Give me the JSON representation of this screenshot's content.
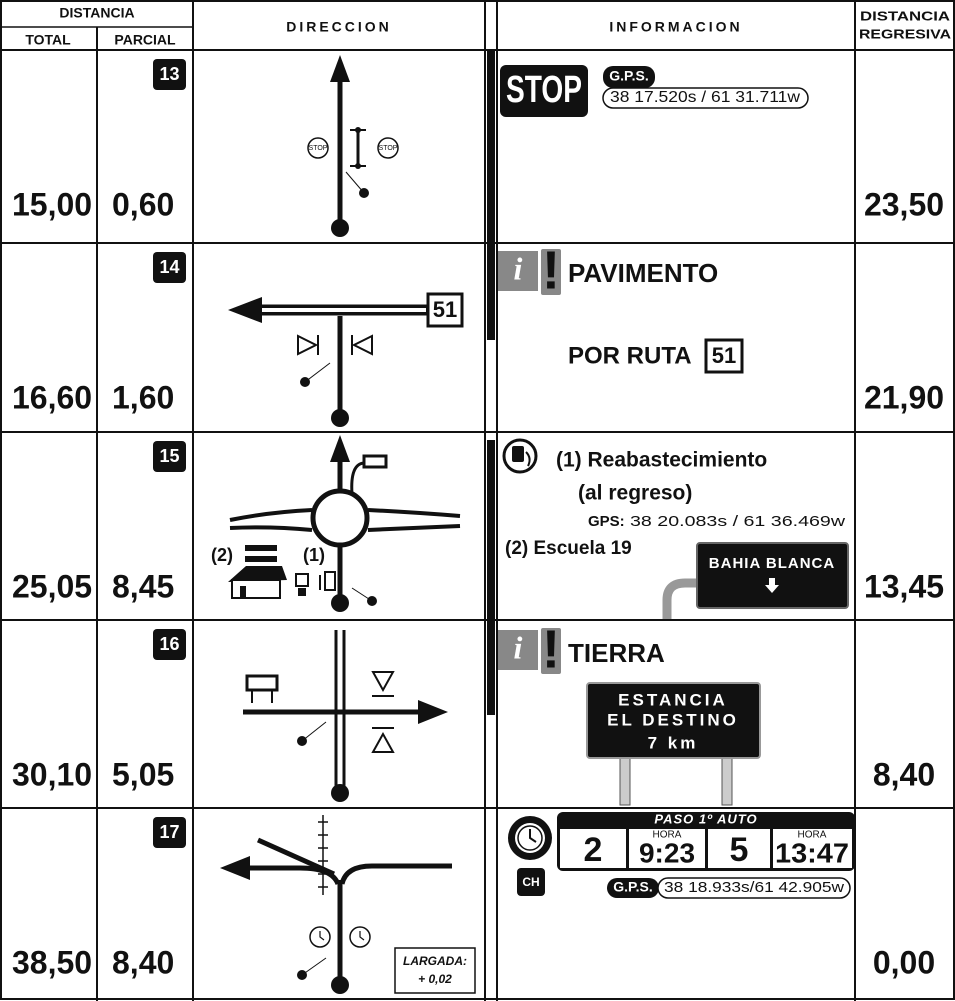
{
  "header": {
    "distancia": "DISTANCIA",
    "total": "TOTAL",
    "parcial": "PARCIAL",
    "direccion": "DIRECCION",
    "informacion": "INFORMACION",
    "distancia_regresiva": [
      "DISTANCIA",
      "REGRESIVA"
    ]
  },
  "rows": [
    {
      "number": "13",
      "total": "15,00",
      "parcial": "0,60",
      "regresiva": "23,50",
      "signs": [
        "STOP",
        "STOP"
      ],
      "stop": "STOP",
      "gps_label": "G.P.S.",
      "gps": "38 17.520s / 61 31.711w"
    },
    {
      "number": "14",
      "total": "16,60",
      "parcial": "1,60",
      "regresiva": "21,90",
      "route": "51",
      "info_icon": "i",
      "exclamation": "!",
      "title": "PAVIMENTO",
      "subtitle": "POR RUTA",
      "subtitle_route": "51"
    },
    {
      "number": "15",
      "total": "25,05",
      "parcial": "8,45",
      "regresiva": "13,45",
      "labels": [
        "(2)",
        "(1)"
      ],
      "items": [
        "(1) Reabastecimiento",
        "(al regreso)"
      ],
      "gps_label": "GPS:",
      "gps": "38 20.083s / 61 36.469w",
      "item2": "(2) Escuela 19",
      "sign": "BAHIA BLANCA"
    },
    {
      "number": "16",
      "total": "30,10",
      "parcial": "5,05",
      "regresiva": "8,40",
      "info_icon": "i",
      "exclamation": "!",
      "title": "TIERRA",
      "sign": [
        "ESTANCIA",
        "EL DESTINO",
        "7 km"
      ]
    },
    {
      "number": "17",
      "total": "38,50",
      "parcial": "8,40",
      "regresiva": "0,00",
      "start": [
        "LARGADA:",
        "+ 0,02"
      ],
      "ch": "CH",
      "panel_title": "PASO 1º AUTO",
      "passes": [
        {
          "car": "2",
          "hora_label": "HORA",
          "time": "9:23"
        },
        {
          "car": "5",
          "hora_label": "HORA",
          "time": "13:47"
        }
      ],
      "gps_label": "G.P.S.",
      "gps": "38 18.933s/61 42.905w"
    }
  ]
}
